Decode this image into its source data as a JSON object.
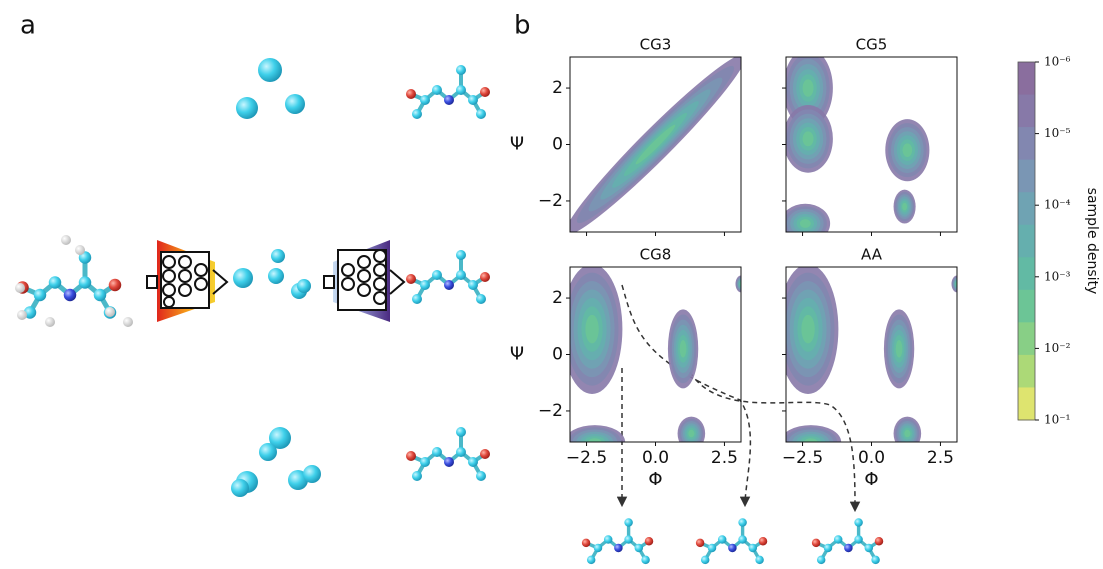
{
  "panels": {
    "a": {
      "label": "a"
    },
    "b": {
      "label": "b",
      "plots": [
        {
          "title": "CG3"
        },
        {
          "title": "CG5"
        },
        {
          "title": "CG8"
        },
        {
          "title": "AA"
        }
      ],
      "x_label": "Φ",
      "y_label": "Ψ",
      "xlim": [
        -3.1,
        3.1
      ],
      "ylim": [
        -3.1,
        3.1
      ],
      "xticks": [
        {
          "value": -2.5,
          "label": "−2.5"
        },
        {
          "value": 0,
          "label": "0.0"
        },
        {
          "value": 2.5,
          "label": "2.5"
        }
      ],
      "yticks": [
        {
          "value": -2,
          "label": "−2"
        },
        0,
        2
      ],
      "colorbar": {
        "label": "sample density",
        "log": true,
        "range": [
          1e-06,
          0.1
        ],
        "ticks": [
          {
            "value": 1e-06,
            "label": "10⁻⁶"
          },
          {
            "value": 1e-05,
            "label": "10⁻⁵"
          },
          {
            "value": 0.0001,
            "label": "10⁻⁴"
          },
          {
            "value": 0.001,
            "label": "10⁻³"
          },
          {
            "value": 0.01,
            "label": "10⁻²"
          },
          {
            "value": 0.1,
            "label": "10⁻¹"
          }
        ],
        "colors": [
          "#8a6e9e",
          "#8779a8",
          "#8287b0",
          "#7a96b4",
          "#6fa3b3",
          "#65afae",
          "#62baa4",
          "#6cc596",
          "#88cf86",
          "#acd977",
          "#dee46f"
        ]
      }
    }
  }
}
